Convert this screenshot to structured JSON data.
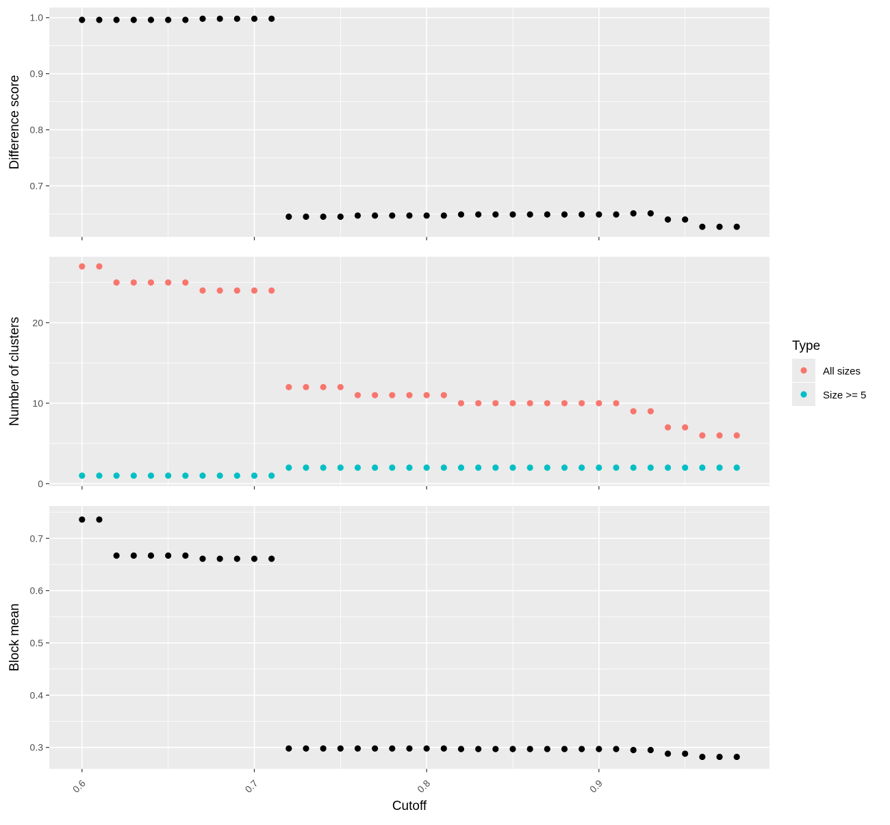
{
  "chart_data": {
    "type": "scatter",
    "xlabel": "Cutoff",
    "x_ticks": [
      "0.6",
      "0.7",
      "0.8",
      "0.9"
    ],
    "xlim": [
      0.581,
      0.999
    ],
    "x": [
      0.6,
      0.61,
      0.62,
      0.63,
      0.64,
      0.65,
      0.66,
      0.67,
      0.68,
      0.69,
      0.7,
      0.71,
      0.72,
      0.73,
      0.74,
      0.75,
      0.76,
      0.77,
      0.78,
      0.79,
      0.8,
      0.81,
      0.82,
      0.83,
      0.84,
      0.85,
      0.86,
      0.87,
      0.88,
      0.89,
      0.9,
      0.91,
      0.92,
      0.93,
      0.94,
      0.95,
      0.96,
      0.97,
      0.98
    ],
    "panels": [
      {
        "ylabel": "Difference score",
        "ylim": [
          0.609,
          1.018
        ],
        "y_ticks": [
          "0.7",
          "0.8",
          "0.9",
          "1.0"
        ],
        "series": [
          {
            "color": "#000000",
            "values": [
              0.996,
              0.996,
              0.996,
              0.996,
              0.996,
              0.996,
              0.996,
              0.998,
              0.998,
              0.998,
              0.998,
              0.998,
              0.645,
              0.645,
              0.645,
              0.645,
              0.647,
              0.647,
              0.647,
              0.647,
              0.647,
              0.647,
              0.649,
              0.649,
              0.649,
              0.649,
              0.649,
              0.649,
              0.649,
              0.649,
              0.649,
              0.649,
              0.651,
              0.651,
              0.64,
              0.64,
              0.627,
              0.627,
              0.627
            ]
          }
        ]
      },
      {
        "ylabel": "Number of clusters",
        "ylim": [
          -0.3,
          28.2
        ],
        "y_ticks": [
          "0",
          "10",
          "20"
        ],
        "series": [
          {
            "name": "All sizes",
            "color": "#F8766D",
            "values": [
              27,
              27,
              25,
              25,
              25,
              25,
              25,
              24,
              24,
              24,
              24,
              24,
              12,
              12,
              12,
              12,
              11,
              11,
              11,
              11,
              11,
              11,
              10,
              10,
              10,
              10,
              10,
              10,
              10,
              10,
              10,
              10,
              9,
              9,
              7,
              7,
              6,
              6,
              6
            ]
          },
          {
            "name": "Size >= 5",
            "color": "#00BFC4",
            "values": [
              1,
              1,
              1,
              1,
              1,
              1,
              1,
              1,
              1,
              1,
              1,
              1,
              2,
              2,
              2,
              2,
              2,
              2,
              2,
              2,
              2,
              2,
              2,
              2,
              2,
              2,
              2,
              2,
              2,
              2,
              2,
              2,
              2,
              2,
              2,
              2,
              2,
              2,
              2
            ]
          }
        ]
      },
      {
        "ylabel": "Block mean",
        "ylim": [
          0.259,
          0.762
        ],
        "y_ticks": [
          "0.3",
          "0.4",
          "0.5",
          "0.6",
          "0.7"
        ],
        "series": [
          {
            "color": "#000000",
            "values": [
              0.736,
              0.736,
              0.667,
              0.667,
              0.667,
              0.667,
              0.667,
              0.661,
              0.661,
              0.661,
              0.661,
              0.661,
              0.298,
              0.298,
              0.298,
              0.298,
              0.298,
              0.298,
              0.298,
              0.298,
              0.298,
              0.298,
              0.297,
              0.297,
              0.297,
              0.297,
              0.297,
              0.297,
              0.297,
              0.297,
              0.297,
              0.297,
              0.295,
              0.295,
              0.288,
              0.288,
              0.282,
              0.282,
              0.282
            ]
          }
        ]
      }
    ],
    "legend": {
      "title": "Type",
      "placement": "right",
      "items": [
        {
          "label": "All sizes",
          "color": "#F8766D"
        },
        {
          "label": "Size >= 5",
          "color": "#00BFC4"
        }
      ]
    },
    "panel_background": "#EBEBEB",
    "grid": true
  }
}
